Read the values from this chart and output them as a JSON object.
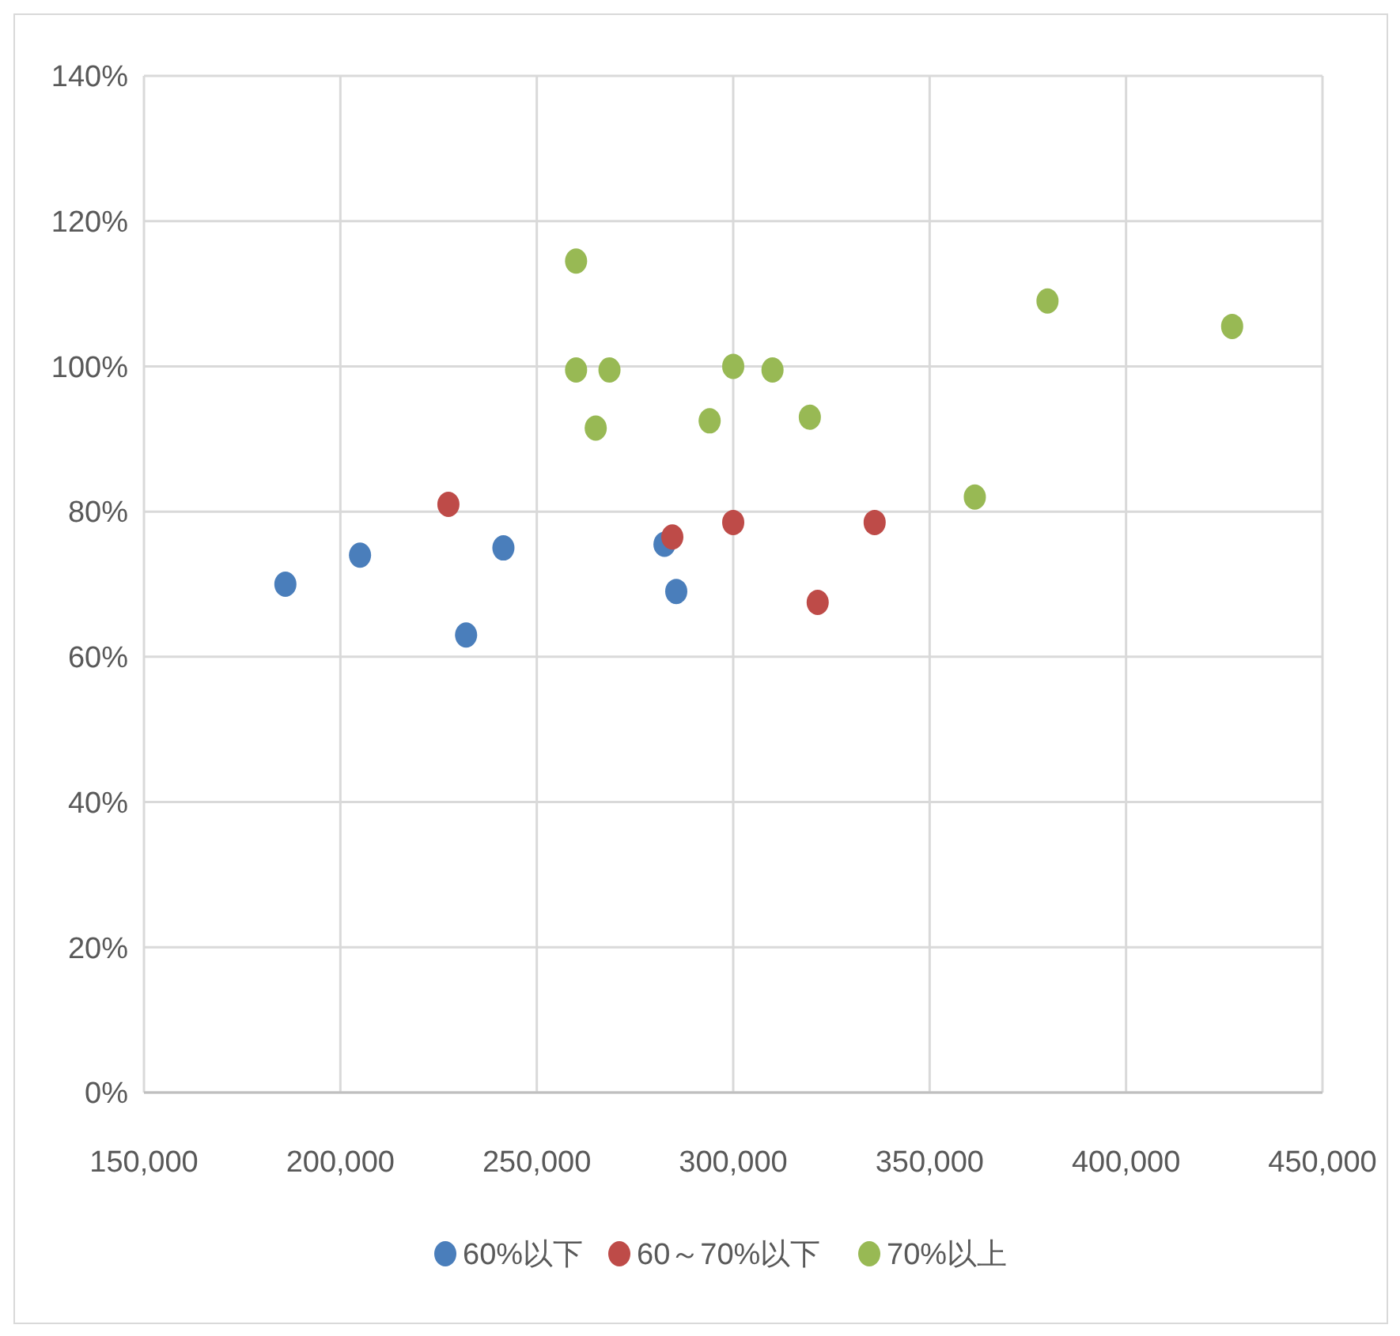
{
  "chart_data": {
    "type": "scatter",
    "xlim": [
      150000,
      450000
    ],
    "ylim": [
      0,
      140
    ],
    "xticks": [
      {
        "value": 150000,
        "label": "150,000"
      },
      {
        "value": 200000,
        "label": "200,000"
      },
      {
        "value": 250000,
        "label": "250,000"
      },
      {
        "value": 300000,
        "label": "300,000"
      },
      {
        "value": 350000,
        "label": "350,000"
      },
      {
        "value": 400000,
        "label": "400,000"
      },
      {
        "value": 450000,
        "label": "450,000"
      }
    ],
    "yticks": [
      {
        "value": 0,
        "label": "0%"
      },
      {
        "value": 20,
        "label": "20%"
      },
      {
        "value": 40,
        "label": "40%"
      },
      {
        "value": 60,
        "label": "60%"
      },
      {
        "value": 80,
        "label": "80%"
      },
      {
        "value": 100,
        "label": "100%"
      },
      {
        "value": 120,
        "label": "120%"
      },
      {
        "value": 140,
        "label": "140%"
      }
    ],
    "grid": true,
    "legend": "bottom",
    "marker": "circle",
    "series": [
      {
        "name": "60%以下",
        "color": "#4a7ebb",
        "x": [
          186000,
          205000,
          241500,
          232000,
          282500,
          285500
        ],
        "values": [
          70,
          74,
          75,
          63,
          75.5,
          69
        ]
      },
      {
        "name": "60～70%以下",
        "color": "#be4b48",
        "x": [
          227500,
          284500,
          300000,
          321500,
          336000
        ],
        "values": [
          81,
          76.5,
          78.5,
          67.5,
          78.5
        ]
      },
      {
        "name": "70%以上",
        "color": "#98b954",
        "x": [
          260000,
          260000,
          268500,
          265000,
          294000,
          300000,
          310000,
          319500,
          361500,
          380000,
          427000
        ],
        "values": [
          114.5,
          99.5,
          99.5,
          91.5,
          92.5,
          100,
          99.5,
          93,
          82,
          109,
          105.5
        ]
      }
    ]
  }
}
